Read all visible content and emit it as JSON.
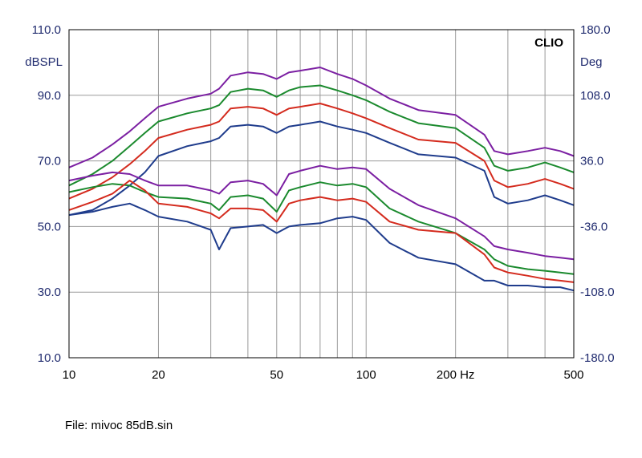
{
  "chart_data": {
    "type": "line",
    "brand": "CLIO",
    "x_scale": "log",
    "xlim": [
      10,
      500
    ],
    "ylim": [
      10,
      110
    ],
    "y2lim": [
      -180,
      180
    ],
    "left_unit": "dBSPL",
    "right_unit": "Deg",
    "xticks": [
      {
        "value": 10,
        "label": "10"
      },
      {
        "value": 20,
        "label": "20"
      },
      {
        "value": 50,
        "label": "50"
      },
      {
        "value": 100,
        "label": "100"
      },
      {
        "value": 200,
        "label": "200 Hz"
      },
      {
        "value": 500,
        "label": "500"
      }
    ],
    "yticks_left": [
      "110.0",
      "90.0",
      "70.0",
      "50.0",
      "30.0",
      "10.0"
    ],
    "yticks_left_values": [
      110,
      90,
      70,
      50,
      30,
      10
    ],
    "yticks_right": [
      "180.0",
      "108.0",
      "36.0",
      "-36.0",
      "-108.0",
      "-180.0"
    ],
    "grid": true,
    "x": [
      10,
      12,
      14,
      16,
      18,
      20,
      25,
      30,
      32,
      35,
      40,
      45,
      50,
      55,
      60,
      70,
      80,
      90,
      100,
      120,
      150,
      200,
      250,
      270,
      300,
      350,
      400,
      450,
      500
    ],
    "series": [
      {
        "color": "#7b1fa2",
        "values": [
          68,
          71,
          75,
          79,
          83,
          86.5,
          89,
          90.5,
          92,
          96,
          97,
          96.5,
          95,
          97,
          97.5,
          98.5,
          96.5,
          95,
          93,
          89,
          85.5,
          84,
          78,
          73,
          72,
          73,
          74,
          73,
          71.5
        ]
      },
      {
        "color": "#1b8a2e",
        "values": [
          62.5,
          66,
          70,
          74.5,
          78.5,
          82,
          84.5,
          86,
          87,
          91,
          92,
          91.5,
          89.5,
          91.5,
          92.5,
          93,
          91.5,
          90,
          88.5,
          85,
          81.5,
          80,
          74,
          68.5,
          67,
          68,
          69.5,
          68,
          66.5
        ]
      },
      {
        "color": "#d42b1e",
        "values": [
          58.5,
          61.5,
          65,
          69,
          73,
          77,
          79.5,
          81,
          82,
          86,
          86.5,
          86,
          84,
          86,
          86.5,
          87.5,
          86,
          84.5,
          83,
          80,
          76.5,
          75.5,
          70,
          64,
          62,
          63,
          64.5,
          63,
          61.5
        ]
      },
      {
        "color": "#1f3c8c",
        "values": [
          53.5,
          55,
          58.5,
          62.5,
          66.5,
          71.5,
          74.5,
          76,
          77,
          80.5,
          81,
          80.5,
          78.5,
          80.5,
          81,
          82,
          80.5,
          79.5,
          78.5,
          75.5,
          72,
          71,
          67,
          59,
          57,
          58,
          59.5,
          58,
          56.5
        ]
      },
      {
        "color": "#7b1fa2",
        "values": [
          64,
          65.5,
          66.5,
          66,
          64,
          62.5,
          62.5,
          61,
          60,
          63.5,
          64,
          63,
          59.5,
          66,
          67,
          68.5,
          67.5,
          68,
          67.5,
          61.5,
          56.5,
          52.5,
          47,
          44,
          43,
          42,
          41,
          40.5,
          40
        ]
      },
      {
        "color": "#1b8a2e",
        "values": [
          60.5,
          62,
          63,
          62.5,
          60.5,
          59,
          58.5,
          57,
          55,
          59,
          59.5,
          58.5,
          54.5,
          61,
          62,
          63.5,
          62.5,
          63,
          62,
          55.5,
          51.5,
          48,
          43,
          40,
          38,
          37,
          36.5,
          36,
          35.5
        ]
      },
      {
        "color": "#d42b1e",
        "values": [
          55,
          57.5,
          60,
          64,
          61,
          57,
          56,
          54,
          52.5,
          55.5,
          55.5,
          55,
          51.5,
          57,
          58,
          59,
          58,
          58.5,
          57.5,
          51.5,
          49,
          48,
          41.5,
          37.5,
          36,
          35,
          34,
          33.5,
          33
        ]
      },
      {
        "color": "#1f3c8c",
        "values": [
          53.5,
          54.5,
          56,
          57,
          55,
          53,
          51.5,
          49,
          43,
          49.5,
          50,
          50.5,
          48,
          50,
          50.5,
          51,
          52.5,
          53,
          52,
          45,
          40.5,
          38.5,
          33.5,
          33.5,
          32,
          32,
          31.5,
          31.5,
          30.5
        ]
      }
    ]
  },
  "file_label": "File: mivoc 85dB.sin"
}
